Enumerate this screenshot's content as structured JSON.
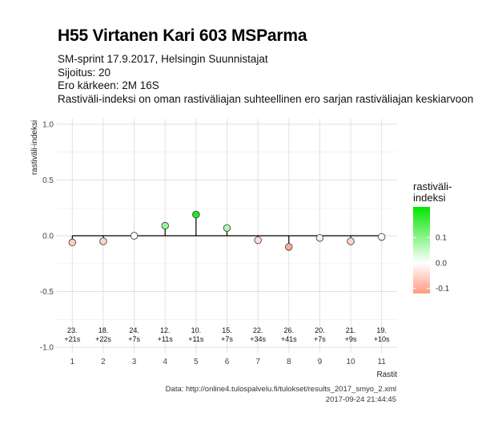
{
  "title": "H55 Virtanen Kari 603 MSParma",
  "subtitle_lines": [
    "SM-sprint 17.9.2017, Helsingin Suunnistajat",
    "Sijoitus: 20",
    "Ero kärkeen: 2M 16S",
    "Rastiväli-indeksi on oman rastiväliajan suhteellinen ero sarjan rastiväliajan keskiarvoon"
  ],
  "caption_lines": [
    "Data: http://online4.tulospalvelu.fi/tulokset/results_2017_smyo_2.xml",
    "2017-09-24 21:44:45"
  ],
  "colors": {
    "low": "#ff9a80",
    "mid": "#ffffff",
    "high": "#00e600",
    "grid": "#dddddd",
    "baseline": "#000000"
  },
  "chart_data": {
    "type": "scatter",
    "xlabel": "Rastit",
    "ylabel": "rastiväli-indeksi",
    "ylim": [
      -1.05,
      1.05
    ],
    "y_ticks": [
      "1.0",
      "0.5",
      "0.0",
      "-0.5",
      "-1.0"
    ],
    "x": [
      1,
      2,
      3,
      4,
      5,
      6,
      7,
      8,
      9,
      10,
      11
    ],
    "values": [
      -0.06,
      -0.05,
      0.0,
      0.09,
      0.19,
      0.07,
      -0.04,
      -0.1,
      -0.02,
      -0.05,
      -0.01
    ],
    "annotations": [
      [
        "23.",
        "+21s"
      ],
      [
        "18.",
        "+22s"
      ],
      [
        "24.",
        "+7s"
      ],
      [
        "12.",
        "+11s"
      ],
      [
        "10.",
        "+11s"
      ],
      [
        "15.",
        "+7s"
      ],
      [
        "22.",
        "+34s"
      ],
      [
        "26.",
        "+41s"
      ],
      [
        "20.",
        "+7s"
      ],
      [
        "21.",
        "+9s"
      ],
      [
        "19.",
        "+10s"
      ]
    ],
    "legend": {
      "title_lines": [
        "rastiväli-",
        "indeksi"
      ],
      "position": "right",
      "tick_labels": [
        "0.1",
        "0.0",
        "-0.1"
      ],
      "tick_values": [
        0.1,
        0.0,
        -0.1
      ],
      "range": [
        -0.12,
        0.22
      ]
    }
  }
}
